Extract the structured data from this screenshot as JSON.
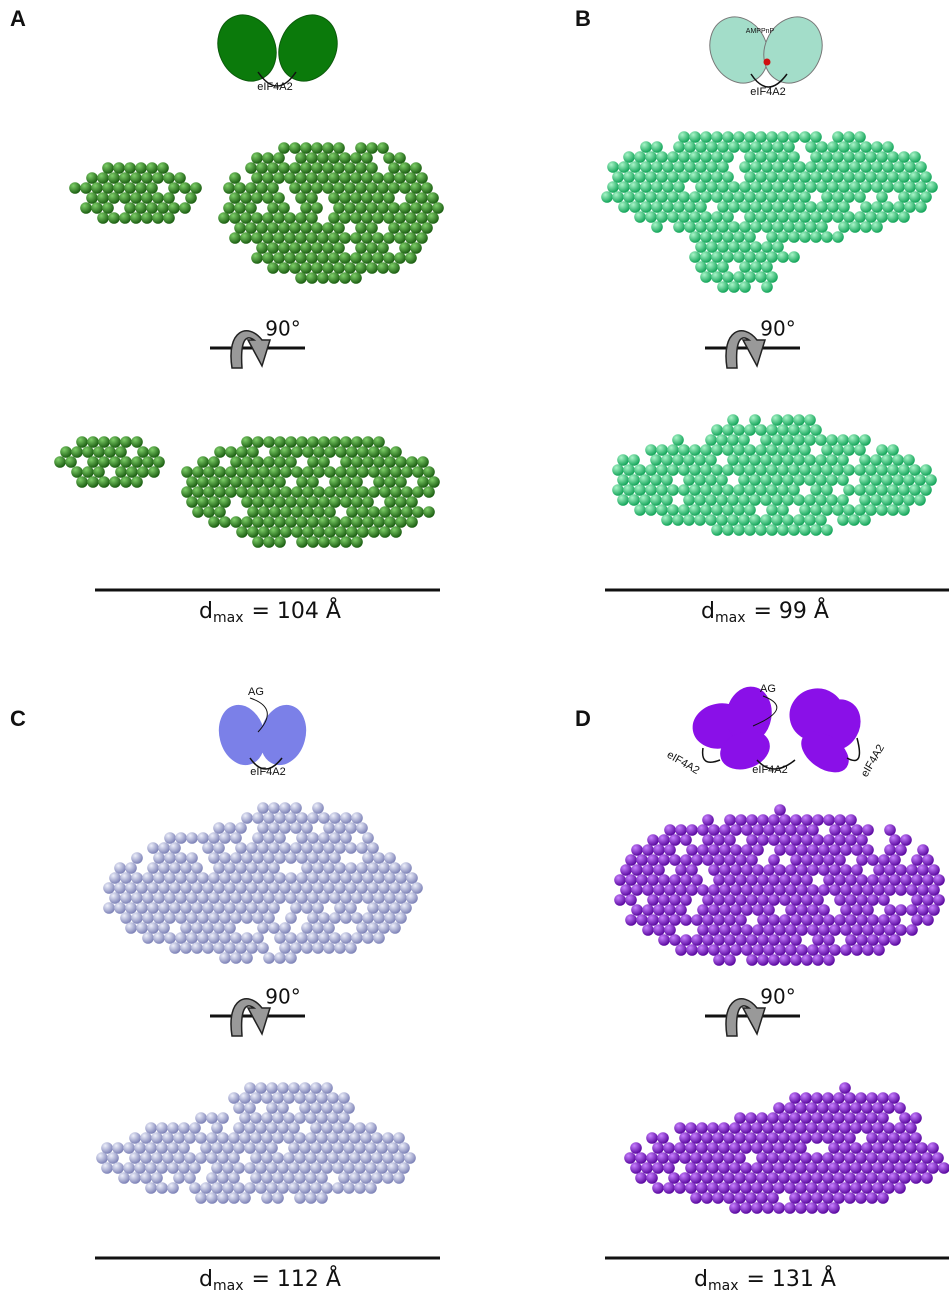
{
  "panels": [
    {
      "letter": "A",
      "cartoon": {
        "labels": [
          "eIF4A2"
        ]
      },
      "rotation": "90°",
      "dmax": {
        "symbol": "d",
        "subscript": "max",
        "value": "= 104 Å"
      }
    },
    {
      "letter": "B",
      "cartoon": {
        "labels": [
          "AMPPnP",
          "eIF4A2"
        ]
      },
      "rotation": "90°",
      "dmax": {
        "symbol": "d",
        "subscript": "max",
        "value": "= 99 Å"
      }
    },
    {
      "letter": "C",
      "cartoon": {
        "labels": [
          "AG",
          "eIF4A2"
        ]
      },
      "rotation": "90°",
      "dmax": {
        "symbol": "d",
        "subscript": "max",
        "value": "= 112 Å"
      }
    },
    {
      "letter": "D",
      "cartoon": {
        "labels": [
          "AG",
          "eIF4A2",
          "eIF4A2",
          "eIF4A2"
        ]
      },
      "rotation": "90°",
      "dmax": {
        "symbol": "d",
        "subscript": "max",
        "value": "= 131 Å"
      }
    }
  ]
}
